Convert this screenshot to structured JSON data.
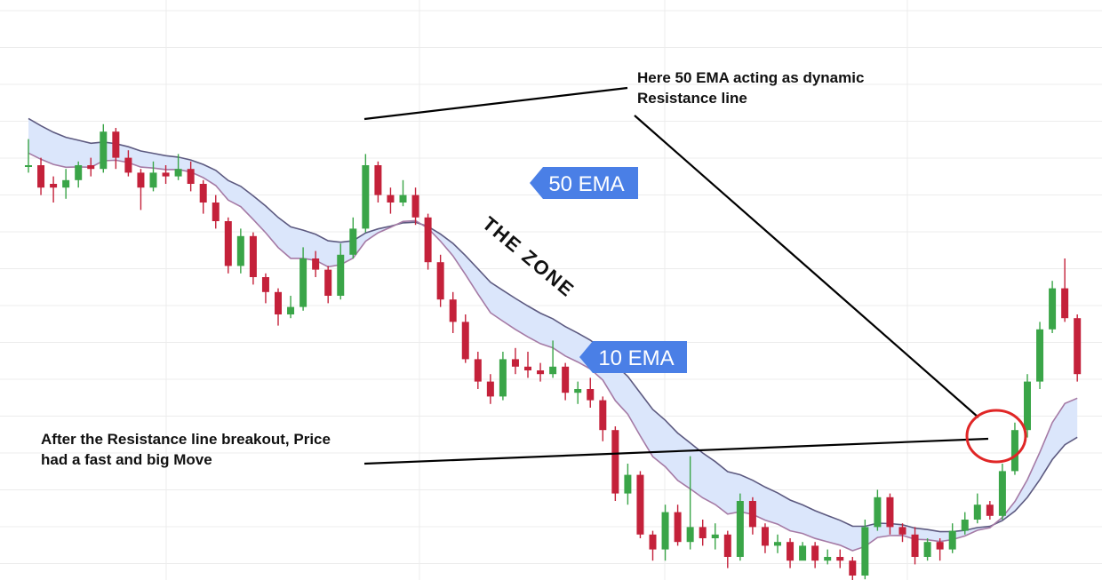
{
  "chart_data": {
    "type": "candlestick",
    "title": "",
    "xlabel": "",
    "ylabel": "",
    "grid": true,
    "colors": {
      "up": "#3aa548",
      "down": "#c4213a",
      "ema50": "#5d5a80",
      "ema10": "#a57aa5",
      "zone_fill": "#dbe6fb",
      "tag": "#4a7fe6",
      "circle": "#e02626"
    },
    "candles": [
      [
        100,
        100,
        107,
        98
      ],
      [
        100,
        94,
        102,
        92
      ],
      [
        95,
        94,
        97,
        90
      ],
      [
        94,
        96,
        99,
        91
      ],
      [
        96,
        100,
        101,
        94
      ],
      [
        100,
        99,
        102,
        97
      ],
      [
        99,
        109,
        111,
        98
      ],
      [
        109,
        102,
        110,
        99
      ],
      [
        102,
        98,
        104,
        97
      ],
      [
        98,
        94,
        99,
        88
      ],
      [
        94,
        98,
        101,
        93
      ],
      [
        98,
        97,
        100,
        95
      ],
      [
        97,
        99,
        103,
        96
      ],
      [
        99,
        95,
        101,
        93
      ],
      [
        95,
        90,
        96,
        87
      ],
      [
        90,
        85,
        92,
        83
      ],
      [
        85,
        73,
        86,
        71
      ],
      [
        73,
        81,
        83,
        71
      ],
      [
        81,
        70,
        82,
        68
      ],
      [
        70,
        66,
        71,
        63
      ],
      [
        66,
        60,
        67,
        57
      ],
      [
        60,
        62,
        65,
        59
      ],
      [
        62,
        75,
        78,
        61
      ],
      [
        75,
        72,
        77,
        70
      ],
      [
        72,
        65,
        73,
        63
      ],
      [
        65,
        76,
        79,
        64
      ],
      [
        76,
        83,
        86,
        75
      ],
      [
        83,
        100,
        103,
        82
      ],
      [
        100,
        92,
        101,
        90
      ],
      [
        92,
        90,
        94,
        87
      ],
      [
        90,
        92,
        96,
        89
      ],
      [
        92,
        86,
        94,
        84
      ],
      [
        86,
        74,
        87,
        72
      ],
      [
        74,
        64,
        76,
        62
      ],
      [
        64,
        58,
        66,
        55
      ],
      [
        58,
        48,
        60,
        47
      ],
      [
        48,
        42,
        50,
        40
      ],
      [
        42,
        38,
        44,
        36
      ],
      [
        38,
        48,
        50,
        37
      ],
      [
        48,
        46,
        51,
        44
      ],
      [
        46,
        45,
        50,
        43
      ],
      [
        45,
        44,
        47,
        42
      ],
      [
        44,
        46,
        53,
        43
      ],
      [
        46,
        39,
        47,
        37
      ],
      [
        39,
        40,
        42,
        36
      ],
      [
        40,
        37,
        43,
        35
      ],
      [
        37,
        29,
        38,
        26
      ],
      [
        29,
        12,
        30,
        10
      ],
      [
        12,
        17,
        20,
        9
      ],
      [
        17,
        1,
        18,
        0
      ],
      [
        1,
        -3,
        2,
        -6
      ],
      [
        -3,
        7,
        9,
        -6
      ],
      [
        7,
        -1,
        9,
        -2
      ],
      [
        -1,
        3,
        22,
        -3
      ],
      [
        3,
        0,
        5,
        -2
      ],
      [
        0,
        1,
        4,
        -3
      ],
      [
        1,
        -5,
        2,
        -8
      ],
      [
        -5,
        10,
        12,
        -6
      ],
      [
        10,
        3,
        11,
        1
      ],
      [
        3,
        -2,
        4,
        -4
      ],
      [
        -2,
        -1,
        1,
        -4
      ],
      [
        -1,
        -6,
        0,
        -8
      ],
      [
        -6,
        -2,
        -1,
        -4
      ],
      [
        -2,
        -6,
        -1,
        -8
      ],
      [
        -6,
        -5,
        -3,
        -7
      ],
      [
        -5,
        -6,
        -3,
        -8
      ],
      [
        -6,
        -10,
        -5,
        -12
      ],
      [
        -10,
        3,
        5,
        -11
      ],
      [
        3,
        11,
        13,
        2
      ],
      [
        11,
        3,
        12,
        1
      ],
      [
        3,
        1,
        4,
        -1
      ],
      [
        1,
        -5,
        3,
        -7
      ],
      [
        -5,
        -1,
        0,
        -6
      ],
      [
        -1,
        -3,
        0,
        -6
      ],
      [
        -3,
        2,
        4,
        -4
      ],
      [
        2,
        5,
        7,
        1
      ],
      [
        5,
        9,
        12,
        4
      ],
      [
        9,
        6,
        10,
        5
      ],
      [
        6,
        18,
        20,
        5
      ],
      [
        18,
        29,
        31,
        17
      ],
      [
        29,
        42,
        44,
        27
      ],
      [
        42,
        56,
        58,
        40
      ],
      [
        56,
        67,
        69,
        55
      ],
      [
        67,
        59,
        75,
        58
      ],
      [
        59,
        44,
        60,
        42
      ]
    ]
  },
  "labels": {
    "annotation_top": [
      "Here 50 EMA acting as dynamic",
      "Resistance line"
    ],
    "annotation_bottom": [
      "After the Resistance line breakout, Price",
      "had a fast and big Move"
    ],
    "ema50_tag": "50 EMA",
    "ema10_tag": "10 EMA",
    "zone": "THE ZONE"
  }
}
